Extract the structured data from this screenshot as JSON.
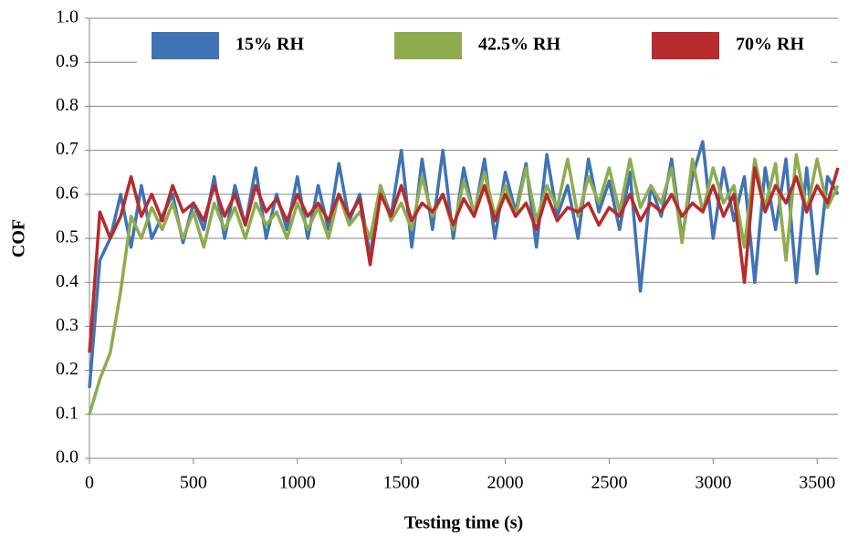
{
  "chart_data": {
    "type": "line",
    "x_label": "Testing time (s)",
    "y_label": "COF",
    "x": [
      0,
      50,
      100,
      150,
      200,
      250,
      300,
      350,
      400,
      450,
      500,
      550,
      600,
      650,
      700,
      750,
      800,
      850,
      900,
      950,
      1000,
      1050,
      1100,
      1150,
      1200,
      1250,
      1300,
      1350,
      1400,
      1450,
      1500,
      1550,
      1600,
      1650,
      1700,
      1750,
      1800,
      1850,
      1900,
      1950,
      2000,
      2050,
      2100,
      2150,
      2200,
      2250,
      2300,
      2350,
      2400,
      2450,
      2500,
      2550,
      2600,
      2650,
      2700,
      2750,
      2800,
      2850,
      2900,
      2950,
      3000,
      3050,
      3100,
      3150,
      3200,
      3250,
      3300,
      3350,
      3400,
      3450,
      3500,
      3550,
      3600
    ],
    "series": [
      {
        "name": "15% RH",
        "color": "#3f73b4",
        "values": [
          0.16,
          0.45,
          0.5,
          0.6,
          0.48,
          0.62,
          0.5,
          0.55,
          0.6,
          0.49,
          0.58,
          0.52,
          0.64,
          0.5,
          0.62,
          0.53,
          0.66,
          0.5,
          0.6,
          0.52,
          0.64,
          0.5,
          0.62,
          0.52,
          0.67,
          0.54,
          0.6,
          0.46,
          0.62,
          0.55,
          0.7,
          0.48,
          0.68,
          0.52,
          0.7,
          0.5,
          0.66,
          0.55,
          0.68,
          0.5,
          0.65,
          0.56,
          0.67,
          0.48,
          0.69,
          0.55,
          0.62,
          0.5,
          0.68,
          0.56,
          0.63,
          0.52,
          0.65,
          0.38,
          0.62,
          0.55,
          0.68,
          0.5,
          0.64,
          0.72,
          0.5,
          0.66,
          0.54,
          0.64,
          0.4,
          0.66,
          0.52,
          0.68,
          0.4,
          0.66,
          0.42,
          0.64,
          0.6
        ]
      },
      {
        "name": "42.5% RH",
        "color": "#8eac4d",
        "values": [
          0.1,
          0.18,
          0.24,
          0.38,
          0.55,
          0.5,
          0.57,
          0.52,
          0.58,
          0.5,
          0.56,
          0.48,
          0.58,
          0.52,
          0.57,
          0.5,
          0.58,
          0.53,
          0.56,
          0.5,
          0.58,
          0.52,
          0.57,
          0.5,
          0.6,
          0.53,
          0.56,
          0.5,
          0.62,
          0.54,
          0.58,
          0.52,
          0.64,
          0.55,
          0.6,
          0.52,
          0.63,
          0.56,
          0.65,
          0.55,
          0.62,
          0.55,
          0.66,
          0.54,
          0.62,
          0.57,
          0.68,
          0.55,
          0.64,
          0.58,
          0.66,
          0.56,
          0.68,
          0.57,
          0.62,
          0.58,
          0.66,
          0.49,
          0.68,
          0.56,
          0.66,
          0.58,
          0.62,
          0.48,
          0.68,
          0.57,
          0.67,
          0.45,
          0.69,
          0.56,
          0.68,
          0.57,
          0.62
        ]
      },
      {
        "name": "70% RH",
        "color": "#b82a2b",
        "values": [
          0.24,
          0.56,
          0.5,
          0.55,
          0.64,
          0.55,
          0.6,
          0.54,
          0.62,
          0.56,
          0.58,
          0.54,
          0.62,
          0.55,
          0.6,
          0.53,
          0.62,
          0.56,
          0.59,
          0.54,
          0.6,
          0.55,
          0.58,
          0.54,
          0.6,
          0.55,
          0.59,
          0.44,
          0.6,
          0.55,
          0.62,
          0.54,
          0.58,
          0.56,
          0.6,
          0.53,
          0.59,
          0.55,
          0.62,
          0.54,
          0.6,
          0.55,
          0.58,
          0.52,
          0.6,
          0.54,
          0.57,
          0.56,
          0.58,
          0.53,
          0.57,
          0.55,
          0.6,
          0.54,
          0.58,
          0.56,
          0.6,
          0.55,
          0.58,
          0.56,
          0.62,
          0.55,
          0.6,
          0.4,
          0.66,
          0.56,
          0.62,
          0.58,
          0.64,
          0.56,
          0.62,
          0.58,
          0.66
        ]
      }
    ],
    "xlim": [
      0,
      3600
    ],
    "xticks": [
      0,
      500,
      1000,
      1500,
      2000,
      2500,
      3000,
      3500
    ],
    "ylim": [
      0,
      1
    ],
    "yticks": [
      {
        "value": 0,
        "label": "0.0"
      },
      0.1,
      0.2,
      0.3,
      0.4,
      0.5,
      0.6,
      0.7,
      0.8,
      0.9,
      {
        "value": 1,
        "label": "1.0"
      }
    ],
    "grid": true,
    "legend": "top"
  }
}
